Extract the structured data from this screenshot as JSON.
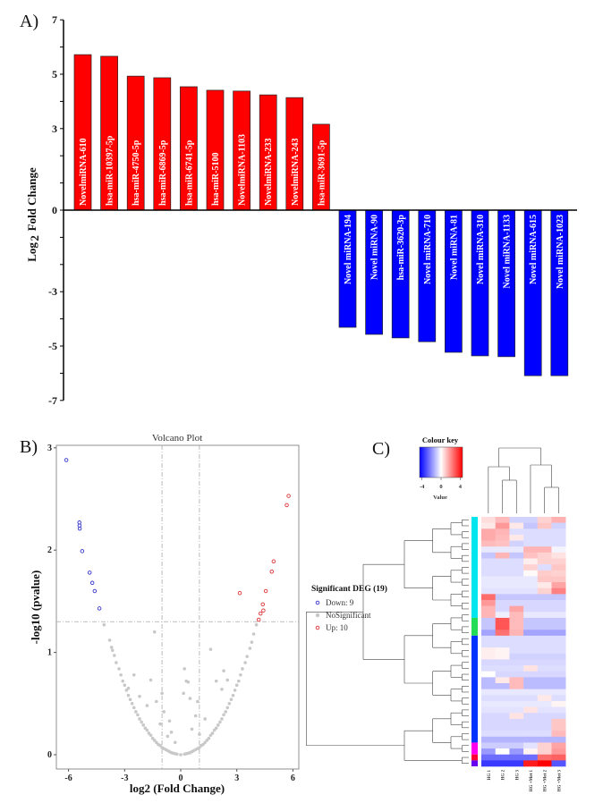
{
  "chart_data": [
    {
      "panel": "A)",
      "type": "bar",
      "ylabel": "Log2 Fold Change",
      "ylabel_main": "Log",
      "ylabel_sub": "2",
      "ylabel_rest": " Fold Change",
      "yticks": [
        7,
        5,
        3,
        0,
        -3,
        -5,
        -7
      ],
      "ylim": [
        -7,
        7
      ],
      "categories": [
        "NovelmiRNA-610",
        "hsa-miR-10397-5p",
        "hsa-miR-4750-5p",
        "hsa-miR-6869-5p",
        "hsa-miR-6741-5p",
        "hsa-miR-5100",
        "NovelmiRNA-1103",
        "NovelmiRNA-233",
        "NovelmiRNA-243",
        "hsa-miR-3691-5p",
        "Novel miRNA-194",
        "Novel miRNA-90",
        "hsa-miR-3620-3p",
        "Novel miRNA-710",
        "Novel miRNA-81",
        "Novel miRNA-310",
        "Novel miRNA-1133",
        "Novel miRNA-615",
        "Novel miRNA-1023"
      ],
      "values": [
        5.72,
        5.66,
        4.93,
        4.87,
        4.54,
        4.41,
        4.38,
        4.24,
        4.14,
        3.16,
        -4.31,
        -4.57,
        -4.7,
        -4.84,
        -5.23,
        -5.36,
        -5.39,
        -6.09,
        -6.09
      ],
      "colors": {
        "up": "#ff0000",
        "down": "#0000ff"
      }
    },
    {
      "panel": "B)",
      "type": "scatter",
      "title": "Volcano Plot",
      "xlabel": "log2 (Fold Change)",
      "ylabel": "-log10 (pvalue)",
      "xticks": [
        -6,
        -3,
        0,
        3,
        6
      ],
      "yticks": [
        0,
        1,
        2,
        3
      ],
      "xlim": [
        -6.5,
        6.5
      ],
      "ylim": [
        -0.14,
        3.02
      ],
      "thresholds": {
        "log2fc": [
          -1,
          1
        ],
        "neg_log10_p": 1.3
      },
      "legend": {
        "title": "Significant DEG (19)",
        "placement": "right",
        "items": [
          {
            "label": "Down: 9",
            "color": "#3333cc"
          },
          {
            "label": "NoSignificant",
            "color": "#c8c8c8"
          },
          {
            "label": "Up: 10",
            "color": "#dd3333"
          }
        ]
      },
      "series": {
        "down": [
          [
            -6.12,
            2.88
          ],
          [
            -5.42,
            2.27
          ],
          [
            -5.4,
            2.21
          ],
          [
            -5.41,
            2.24
          ],
          [
            -5.27,
            1.99
          ],
          [
            -4.87,
            1.78
          ],
          [
            -4.73,
            1.68
          ],
          [
            -4.6,
            1.6
          ],
          [
            -4.35,
            1.43
          ]
        ],
        "up": [
          [
            5.77,
            2.53
          ],
          [
            5.67,
            2.44
          ],
          [
            4.97,
            1.89
          ],
          [
            4.87,
            1.79
          ],
          [
            4.55,
            1.6
          ],
          [
            3.16,
            1.58
          ],
          [
            4.39,
            1.47
          ],
          [
            4.42,
            1.41
          ],
          [
            4.27,
            1.38
          ],
          [
            4.17,
            1.32
          ]
        ],
        "nosig": [
          [
            -4.1,
            1.27
          ],
          [
            -3.8,
            1.12
          ],
          [
            -3.7,
            1.05
          ],
          [
            -3.65,
            1.02
          ],
          [
            -3.55,
            0.97
          ],
          [
            -3.45,
            0.9
          ],
          [
            -3.3,
            0.84
          ],
          [
            -3.2,
            0.78
          ],
          [
            -3.1,
            0.72
          ],
          [
            -3.0,
            0.68
          ],
          [
            -2.9,
            0.63
          ],
          [
            -2.8,
            0.58
          ],
          [
            -2.7,
            0.54
          ],
          [
            -2.6,
            0.5
          ],
          [
            -2.5,
            0.46
          ],
          [
            -2.4,
            0.42
          ],
          [
            -2.3,
            0.39
          ],
          [
            -2.2,
            0.35
          ],
          [
            -2.1,
            0.32
          ],
          [
            -2.0,
            0.29
          ],
          [
            -1.9,
            0.26
          ],
          [
            -1.8,
            0.24
          ],
          [
            -1.7,
            0.21
          ],
          [
            -1.6,
            0.19
          ],
          [
            -1.5,
            0.16
          ],
          [
            -1.4,
            0.14
          ],
          [
            -1.3,
            0.12
          ],
          [
            -1.2,
            0.1
          ],
          [
            -1.1,
            0.09
          ],
          [
            -1,
            0.07
          ],
          [
            -0.9,
            0.06
          ],
          [
            -0.8,
            0.05
          ],
          [
            -0.7,
            0.04
          ],
          [
            -0.6,
            0.03
          ],
          [
            -0.5,
            0.02
          ],
          [
            -0.4,
            0.015
          ],
          [
            -0.3,
            0.01
          ],
          [
            -0.2,
            0.005
          ],
          [
            -1.4,
            1.2
          ],
          [
            -2.5,
            0.78
          ],
          [
            -1.6,
            0.73
          ],
          [
            -2.2,
            0.57
          ],
          [
            -1.3,
            0.52
          ],
          [
            -1.0,
            0.6
          ],
          [
            -0.6,
            0.33
          ],
          [
            -0.9,
            0.42
          ],
          [
            -0.5,
            0.22
          ],
          [
            -1.1,
            0.3
          ],
          [
            -0.7,
            0.18
          ],
          [
            -1.8,
            0.48
          ],
          [
            -0.3,
            0.12
          ],
          [
            -2.8,
            0.65
          ],
          [
            4.05,
            1.27
          ],
          [
            3.9,
            1.18
          ],
          [
            3.8,
            1.1
          ],
          [
            3.7,
            1.04
          ],
          [
            3.55,
            0.96
          ],
          [
            3.45,
            0.9
          ],
          [
            3.3,
            0.84
          ],
          [
            3.2,
            0.78
          ],
          [
            3.1,
            0.72
          ],
          [
            3.0,
            0.68
          ],
          [
            2.9,
            0.63
          ],
          [
            2.8,
            0.58
          ],
          [
            2.7,
            0.54
          ],
          [
            2.6,
            0.5
          ],
          [
            2.5,
            0.46
          ],
          [
            2.4,
            0.42
          ],
          [
            2.3,
            0.39
          ],
          [
            2.2,
            0.35
          ],
          [
            2.1,
            0.32
          ],
          [
            2.0,
            0.29
          ],
          [
            1.9,
            0.26
          ],
          [
            1.8,
            0.24
          ],
          [
            1.7,
            0.21
          ],
          [
            1.6,
            0.19
          ],
          [
            1.5,
            0.16
          ],
          [
            1.4,
            0.14
          ],
          [
            1.3,
            0.12
          ],
          [
            1.2,
            0.1
          ],
          [
            1.1,
            0.09
          ],
          [
            1,
            0.07
          ],
          [
            0.9,
            0.06
          ],
          [
            0.8,
            0.05
          ],
          [
            0.7,
            0.04
          ],
          [
            0.6,
            0.03
          ],
          [
            0.5,
            0.02
          ],
          [
            0.4,
            0.015
          ],
          [
            0.3,
            0.01
          ],
          [
            0.2,
            0.005
          ],
          [
            0,
            0
          ],
          [
            1.6,
            1.03
          ],
          [
            1.9,
            0.72
          ],
          [
            2.3,
            0.82
          ],
          [
            0.2,
            0.84
          ],
          [
            0.3,
            0.72
          ],
          [
            0.4,
            0.71
          ],
          [
            0.9,
            0.52
          ],
          [
            0.15,
            0.6
          ],
          [
            0.5,
            0.55
          ],
          [
            0.8,
            0.38
          ],
          [
            1.3,
            0.35
          ],
          [
            2.5,
            0.73
          ],
          [
            2.2,
            0.64
          ],
          [
            0.6,
            0.25
          ],
          [
            1.0,
            0.2
          ]
        ]
      }
    },
    {
      "panel": "C)",
      "type": "heatmap",
      "colour_key": {
        "title": "Colour key",
        "label": "Value",
        "ticks": [
          -4,
          0,
          4
        ],
        "range": [
          -4.5,
          4.5
        ],
        "low": "#0000ff",
        "mid": "#ffffff",
        "high": "#ff0000"
      },
      "columns": [
        "HG 1",
        "HG 2",
        "HG 3",
        "HG +Met 1",
        "HG +Met 2",
        "HG +Met 3"
      ],
      "row_groups": [
        {
          "color": "#00e5ee",
          "count": 17
        },
        {
          "color": "#22dd55",
          "count": 3
        },
        {
          "color": "#0033ff",
          "count": 18
        },
        {
          "color": "#ff00ee",
          "count": 2
        },
        {
          "color": "#ff0033",
          "count": 1
        },
        {
          "color": "#6600ee",
          "count": 1
        }
      ],
      "values": [
        [
          0.6,
          1.2,
          -0.8,
          -0.8,
          0.8,
          1.4
        ],
        [
          0.4,
          1.8,
          0.4,
          -1,
          1,
          -0.8
        ],
        [
          1.5,
          1.3,
          -0.6,
          -0.6,
          -0.6,
          -0.6
        ],
        [
          1.5,
          1.2,
          0.4,
          -0.6,
          -0.6,
          -0.6
        ],
        [
          1.2,
          1.1,
          -0.8,
          -0.6,
          -0.6,
          -0.6
        ],
        [
          -0.4,
          -0.4,
          -0.4,
          1.3,
          1.3,
          -0.2
        ],
        [
          -1,
          1.3,
          -1,
          1.1,
          0.8,
          0.5
        ],
        [
          -0.6,
          -0.6,
          -0.6,
          0.3,
          0.8,
          0.8
        ],
        [
          -0.6,
          -0.6,
          -0.6,
          0.8,
          -0.6,
          1
        ],
        [
          -0.6,
          -0.6,
          -0.6,
          0.1,
          0.9,
          0.8
        ],
        [
          -0.4,
          -0.4,
          -0.4,
          -0.4,
          1,
          1
        ],
        [
          -0.4,
          -0.4,
          -0.4,
          -0.4,
          0.4,
          1.6
        ],
        [
          -0.5,
          -0.5,
          -0.5,
          -0.5,
          0.8,
          2.2
        ],
        [
          2.6,
          -1,
          -1,
          -1,
          -1,
          -1
        ],
        [
          1.8,
          -0.7,
          -0.7,
          -0.7,
          -0.7,
          -0.7
        ],
        [
          1.3,
          -0.7,
          1.6,
          -0.7,
          -0.7,
          -0.7
        ],
        [
          1.3,
          -0.3,
          1.2,
          -0.4,
          -0.4,
          -0.4
        ],
        [
          -1,
          3,
          1.2,
          -1,
          -1,
          -1
        ],
        [
          -1,
          3,
          1.2,
          -1,
          -1,
          -1
        ],
        [
          -1.6,
          2.5,
          1.3,
          -1.6,
          -1.6,
          -1.6
        ],
        [
          -0.6,
          -0.6,
          -0.6,
          -0.6,
          -0.6,
          -0.6
        ],
        [
          -0.6,
          -0.6,
          -0.6,
          -0.6,
          -0.6,
          -0.6
        ],
        [
          0.3,
          0.2,
          -0.6,
          -0.6,
          -0.6,
          -0.6
        ],
        [
          0.3,
          0.2,
          -0.8,
          -0.8,
          -0.8,
          -0.8
        ],
        [
          -0.7,
          -0.7,
          -0.7,
          -0.7,
          -0.7,
          -0.7
        ],
        [
          -0.6,
          -0.6,
          -0.6,
          0.5,
          -0.6,
          -0.6
        ],
        [
          0,
          -0.7,
          -0.7,
          -0.7,
          -0.7,
          -0.7
        ],
        [
          -1.2,
          0.4,
          1.2,
          -1.2,
          -1.2,
          -1.2
        ],
        [
          -1.2,
          -1.2,
          1.2,
          -1.2,
          -1.2,
          -1.2
        ],
        [
          -0.4,
          -0.4,
          -0.4,
          -0.4,
          -0.4,
          -0.4
        ],
        [
          -0.6,
          -0.6,
          -0.6,
          -0.6,
          0.4,
          -0.6
        ],
        [
          -0.4,
          -0.4,
          -0.4,
          -0.4,
          -0.4,
          0.2
        ],
        [
          -0.5,
          -0.5,
          -0.5,
          0.5,
          -0.5,
          -0.5
        ],
        [
          -0.7,
          -0.7,
          0.5,
          -0.7,
          -0.7,
          -0.7
        ],
        [
          -0.7,
          -0.7,
          -0.7,
          -0.7,
          -0.7,
          1
        ],
        [
          -0.7,
          -0.7,
          -0.7,
          -0.7,
          -0.7,
          1
        ],
        [
          -0.6,
          -0.6,
          -0.6,
          -0.6,
          -0.6,
          1.2
        ],
        [
          -1.3,
          -1.3,
          -1.3,
          -1.3,
          -1.3,
          -1.3
        ],
        [
          -0.9,
          -0.9,
          -0.9,
          -0.5,
          0.8,
          1.6
        ],
        [
          -1.8,
          0,
          -1.8,
          0.2,
          0.8,
          1.8
        ],
        [
          -2.6,
          -2.6,
          -2.6,
          -2.6,
          2.6,
          2.8
        ],
        [
          -3.5,
          -3.5,
          -3.5,
          4,
          4.5,
          -3
        ]
      ]
    }
  ]
}
